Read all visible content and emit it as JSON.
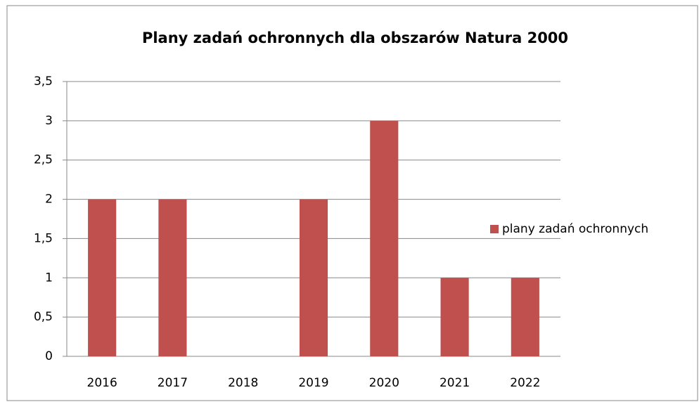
{
  "chart_data": {
    "type": "bar",
    "title": "Plany zadań ochronnych dla obszarów Natura 2000",
    "categories": [
      "2016",
      "2017",
      "2018",
      "2019",
      "2020",
      "2021",
      "2022"
    ],
    "series": [
      {
        "name": "plany zadań ochronnych",
        "color": "#c0504d",
        "values": [
          2,
          2,
          0,
          2,
          3,
          1,
          1
        ]
      }
    ],
    "ylim": [
      0,
      3.5
    ],
    "yticks": [
      0,
      {
        "value": 0.5,
        "label": "0,5"
      },
      1,
      {
        "value": 1.5,
        "label": "1,5"
      },
      2,
      {
        "value": 2.5,
        "label": "2,5"
      },
      3,
      {
        "value": 3.5,
        "label": "3,5"
      }
    ],
    "grid": true,
    "legend": "right"
  }
}
